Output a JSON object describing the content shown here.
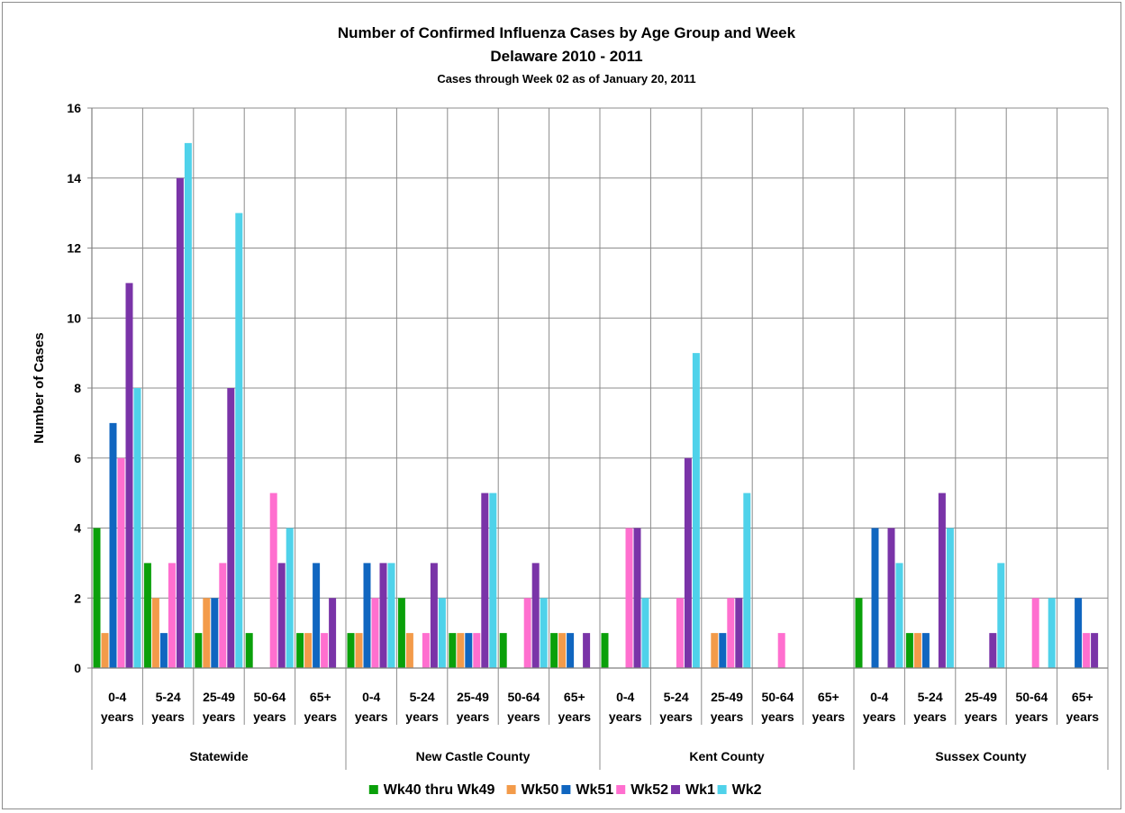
{
  "chart_data": {
    "type": "bar",
    "title": "Number of Confirmed Influenza Cases by Age Group and Week",
    "subtitle": "Delaware 2010 - 2011",
    "subtitle2": "Cases through Week 02 as of January 20, 2011",
    "xlabel": "",
    "ylabel": "Number of Cases",
    "ylim": [
      0,
      16
    ],
    "yticks": [
      0,
      2,
      4,
      6,
      8,
      10,
      12,
      14,
      16
    ],
    "grid": true,
    "legend_position": "bottom",
    "groups": [
      "Statewide",
      "New Castle County",
      "Kent County",
      "Sussex County"
    ],
    "categories_line1": [
      "0-4",
      "5-24",
      "25-49",
      "50-64",
      "65+"
    ],
    "categories_line2": [
      "years",
      "years",
      "years",
      "years",
      "years"
    ],
    "series": [
      {
        "name": "Wk40 thru Wk49",
        "color": "#0aa00a",
        "values": [
          4,
          3,
          1,
          1,
          1,
          1,
          2,
          1,
          1,
          1,
          1,
          0,
          0,
          0,
          0,
          2,
          1,
          0,
          0,
          0
        ]
      },
      {
        "name": "Wk50",
        "color": "#f39b4a",
        "values": [
          1,
          2,
          2,
          0,
          1,
          1,
          1,
          1,
          0,
          1,
          0,
          0,
          1,
          0,
          0,
          0,
          1,
          0,
          0,
          0
        ]
      },
      {
        "name": "Wk51",
        "color": "#1066c0",
        "values": [
          7,
          1,
          2,
          0,
          3,
          3,
          0,
          1,
          0,
          1,
          0,
          0,
          1,
          0,
          0,
          4,
          1,
          0,
          0,
          2
        ]
      },
      {
        "name": "Wk52",
        "color": "#ff6fcf",
        "values": [
          6,
          3,
          3,
          5,
          1,
          2,
          1,
          1,
          2,
          0,
          4,
          2,
          2,
          1,
          0,
          0,
          0,
          0,
          2,
          1
        ]
      },
      {
        "name": "Wk1",
        "color": "#7a34a8",
        "values": [
          11,
          14,
          8,
          3,
          2,
          3,
          3,
          5,
          3,
          1,
          4,
          6,
          2,
          0,
          0,
          4,
          5,
          1,
          0,
          1
        ]
      },
      {
        "name": "Wk2",
        "color": "#4fd2ea",
        "values": [
          8,
          15,
          13,
          4,
          0,
          3,
          2,
          5,
          2,
          0,
          2,
          9,
          5,
          0,
          0,
          3,
          4,
          3,
          2,
          0
        ]
      }
    ]
  }
}
